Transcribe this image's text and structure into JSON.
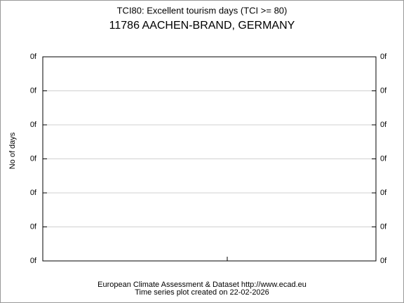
{
  "chart_data": {
    "type": "line",
    "title": "TCI80: Excellent tourism days (TCI >= 80)",
    "subtitle": "11786 AACHEN-BRAND, GERMANY",
    "y_label": "No of days",
    "source": "European Climate Assessment & Dataset  http://www.ecad.eu",
    "note": "Time series plot created on 22-02-2026",
    "series": [],
    "ylim": [
      0,
      6
    ],
    "yticks": [
      {
        "value": 0,
        "label": "0f"
      },
      {
        "value": 1,
        "label": "0f"
      },
      {
        "value": 2,
        "label": "0f"
      },
      {
        "value": 3,
        "label": "0f"
      },
      {
        "value": 4,
        "label": "0f"
      },
      {
        "value": 5,
        "label": "0f"
      },
      {
        "value": 6,
        "label": "0f"
      }
    ],
    "grid": true
  }
}
